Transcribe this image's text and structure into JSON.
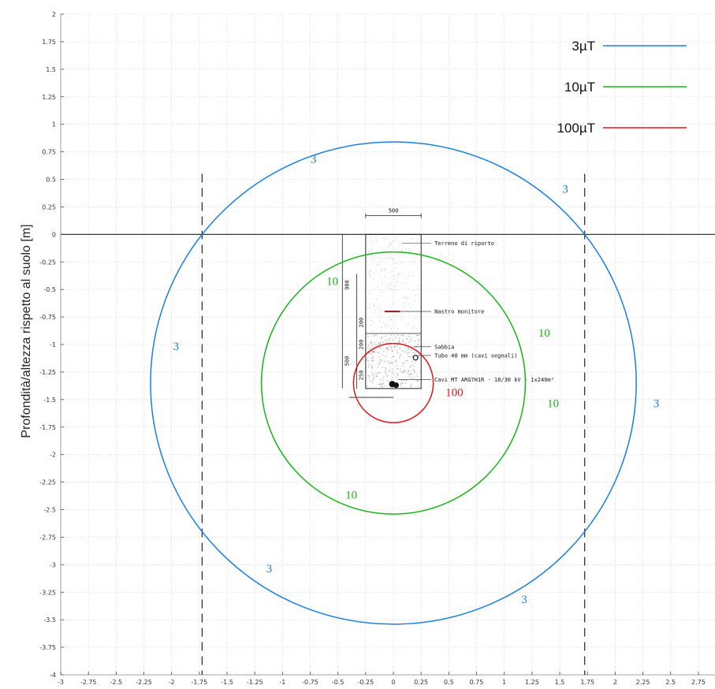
{
  "chart_data": {
    "type": "line",
    "title": "",
    "xlabel": "",
    "ylabel": "Profondità/altezza rispetto al suolo [m]",
    "xlim": [
      -3,
      2.9
    ],
    "ylim": [
      -4,
      2
    ],
    "grid": true,
    "legend_position": "top-right",
    "x_ticks": [
      "-3",
      "-2.75",
      "-2.5",
      "-2.25",
      "-2",
      "-1.75",
      "-1.5",
      "-1.25",
      "-1",
      "-0.75",
      "-0.5",
      "-0.25",
      "0",
      "0.25",
      "0.5",
      "0.75",
      "1",
      "1.25",
      "1.5",
      "1.75",
      "2",
      "2.25",
      "2.5",
      "2.75"
    ],
    "y_ticks": [
      "2",
      "1.75",
      "1.5",
      "1.25",
      "1",
      "0.75",
      "0.5",
      "0.25",
      "0",
      "-0.25",
      "-0.5",
      "-0.75",
      "-1",
      "-1.25",
      "-1.5",
      "-1.75",
      "-2",
      "-2.25",
      "-2.5",
      "-2.75",
      "-3",
      "-3.25",
      "-3.5",
      "-3.75",
      "-4"
    ],
    "series": [
      {
        "name": "3µT",
        "color": "#1a7fe0",
        "shape": "circle",
        "center": [
          0,
          -1.35
        ],
        "radius": 2.19,
        "labels": [
          {
            "text": "3",
            "x": -0.72,
            "y": 0.65
          },
          {
            "text": "3",
            "x": 1.55,
            "y": 0.38
          },
          {
            "text": "3",
            "x": -1.96,
            "y": -1.05
          },
          {
            "text": "3",
            "x": 2.37,
            "y": -1.57
          },
          {
            "text": "3",
            "x": -1.12,
            "y": -3.07
          },
          {
            "text": "3",
            "x": 1.18,
            "y": -3.35
          }
        ]
      },
      {
        "name": "10µT",
        "color": "#18b518",
        "shape": "circle",
        "center": [
          0,
          -1.35
        ],
        "radius": 1.19,
        "labels": [
          {
            "text": "10",
            "x": -0.55,
            "y": -0.46
          },
          {
            "text": "10",
            "x": 1.36,
            "y": -0.93
          },
          {
            "text": "10",
            "x": 1.44,
            "y": -1.57
          },
          {
            "text": "10",
            "x": -0.38,
            "y": -2.4
          }
        ]
      },
      {
        "name": "100µT",
        "color": "#e01818",
        "shape": "circle",
        "center": [
          0,
          -1.35
        ],
        "radius": 0.36,
        "labels": [
          {
            "text": "100",
            "x": 0.55,
            "y": -1.47
          }
        ]
      }
    ],
    "reference_lines": [
      {
        "axis": "y",
        "value": 0,
        "style": "solid",
        "color": "#222222"
      },
      {
        "axis": "x",
        "value": -1.725,
        "style": "dashed",
        "color": "#222222"
      },
      {
        "axis": "x",
        "value": 1.725,
        "style": "dashed",
        "color": "#222222"
      }
    ],
    "trench": {
      "width_label": "500",
      "dimension_labels": [
        "900",
        "200",
        "200",
        "500",
        "250"
      ],
      "annotations": [
        "Terreno di riporto",
        "Nastro monitore",
        "Sabbia",
        "Tubo 40 mm (cavi segnali)",
        "Cavi MT ARG7H1R - 18/30 kV - 1x240m²"
      ]
    }
  }
}
